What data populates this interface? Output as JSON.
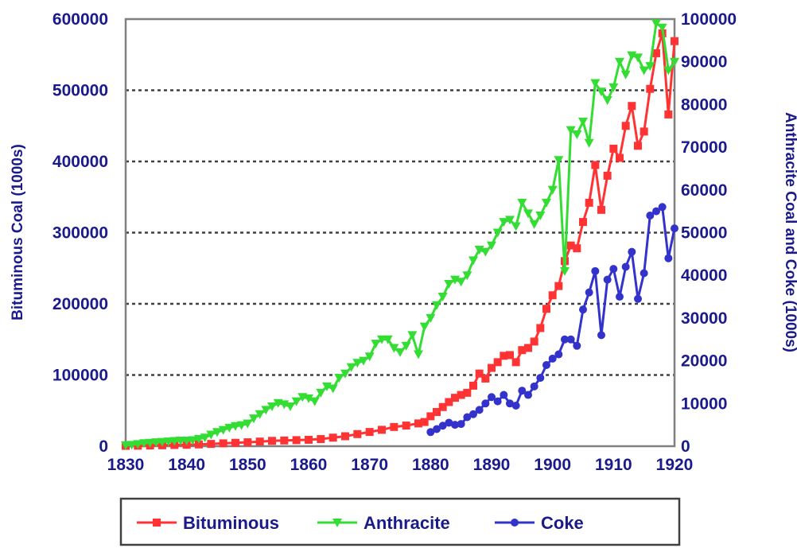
{
  "chart_data": {
    "type": "line",
    "xlabel": "",
    "xlim": [
      1830,
      1920
    ],
    "x_ticks": [
      "1830",
      "1840",
      "1850",
      "1860",
      "1870",
      "1880",
      "1890",
      "1900",
      "1910",
      "1920"
    ],
    "y_left": {
      "label": "Bituminous Coal (1000s)",
      "lim": [
        0,
        600000
      ],
      "ticks": [
        "0",
        "100000",
        "200000",
        "300000",
        "400000",
        "500000",
        "600000"
      ]
    },
    "y_right": {
      "label": "Anthracite Coal and Coke (1000s)",
      "lim": [
        0,
        100000
      ],
      "ticks": [
        "0",
        "10000",
        "20000",
        "30000",
        "40000",
        "50000",
        "60000",
        "70000",
        "80000",
        "90000",
        "100000"
      ]
    },
    "grid": "horizontal dotted",
    "legend_position": "bottom",
    "series": [
      {
        "name": "Bituminous",
        "axis": "left",
        "color": "#ff3333",
        "marker": "square",
        "x": [
          1830,
          1832,
          1834,
          1836,
          1838,
          1840,
          1842,
          1844,
          1846,
          1848,
          1850,
          1852,
          1854,
          1856,
          1858,
          1860,
          1862,
          1864,
          1866,
          1868,
          1870,
          1872,
          1874,
          1876,
          1878,
          1879,
          1880,
          1881,
          1882,
          1883,
          1884,
          1885,
          1886,
          1887,
          1888,
          1889,
          1890,
          1891,
          1892,
          1893,
          1894,
          1895,
          1896,
          1897,
          1898,
          1899,
          1900,
          1901,
          1902,
          1903,
          1904,
          1905,
          1906,
          1907,
          1908,
          1909,
          1910,
          1911,
          1912,
          1913,
          1914,
          1915,
          1916,
          1917,
          1918,
          1919,
          1920
        ],
        "values": [
          500,
          700,
          1000,
          1300,
          1700,
          2000,
          2500,
          3200,
          4000,
          4800,
          5500,
          6500,
          7500,
          8000,
          8500,
          9000,
          10000,
          12000,
          14000,
          17000,
          20000,
          23000,
          27000,
          29000,
          32000,
          34000,
          42000,
          48000,
          55000,
          62000,
          68000,
          72000,
          75000,
          85000,
          102000,
          95000,
          110000,
          118000,
          127000,
          128000,
          118000,
          135000,
          138000,
          147000,
          166000,
          193000,
          212000,
          225000,
          260000,
          282000,
          278000,
          315000,
          342000,
          395000,
          332000,
          380000,
          418000,
          405000,
          450000,
          478000,
          422000,
          442000,
          502000,
          552000,
          580000,
          466000,
          569000
        ]
      },
      {
        "name": "Anthracite",
        "axis": "right",
        "color": "#33dd33",
        "marker": "triangle-down",
        "x": [
          1830,
          1831,
          1832,
          1833,
          1834,
          1835,
          1836,
          1837,
          1838,
          1839,
          1840,
          1841,
          1842,
          1843,
          1844,
          1845,
          1846,
          1847,
          1848,
          1849,
          1850,
          1851,
          1852,
          1853,
          1854,
          1855,
          1856,
          1857,
          1858,
          1859,
          1860,
          1861,
          1862,
          1863,
          1864,
          1865,
          1866,
          1867,
          1868,
          1869,
          1870,
          1871,
          1872,
          1873,
          1874,
          1875,
          1876,
          1877,
          1878,
          1879,
          1880,
          1881,
          1882,
          1883,
          1884,
          1885,
          1886,
          1887,
          1888,
          1889,
          1890,
          1891,
          1892,
          1893,
          1894,
          1895,
          1896,
          1897,
          1898,
          1899,
          1900,
          1901,
          1902,
          1903,
          1904,
          1905,
          1906,
          1907,
          1908,
          1909,
          1910,
          1911,
          1912,
          1913,
          1914,
          1915,
          1916,
          1917,
          1918,
          1919,
          1920
        ],
        "values": [
          200,
          300,
          500,
          700,
          800,
          900,
          1000,
          1100,
          1200,
          1300,
          1300,
          1400,
          1700,
          2000,
          2700,
          3300,
          3800,
          4300,
          4700,
          4900,
          5300,
          6500,
          7500,
          8500,
          9300,
          10100,
          9800,
          9300,
          10500,
          11500,
          11200,
          10500,
          12500,
          14000,
          13500,
          16000,
          17000,
          18500,
          19500,
          20000,
          21000,
          24000,
          25000,
          25000,
          23000,
          22000,
          23500,
          26000,
          21500,
          28000,
          30000,
          33000,
          35000,
          38000,
          39000,
          38500,
          40000,
          43500,
          46000,
          45500,
          47000,
          50000,
          52500,
          53000,
          51500,
          57000,
          54500,
          52000,
          54000,
          57000,
          60000,
          67000,
          41000,
          74000,
          73000,
          76000,
          71000,
          85000,
          83000,
          81000,
          84000,
          90000,
          87000,
          91500,
          91000,
          88000,
          89000,
          99000,
          98000,
          88000,
          90000
        ]
      },
      {
        "name": "Coke",
        "axis": "right",
        "color": "#3333cc",
        "marker": "circle",
        "x": [
          1880,
          1881,
          1882,
          1883,
          1884,
          1885,
          1886,
          1887,
          1888,
          1889,
          1890,
          1891,
          1892,
          1893,
          1894,
          1895,
          1896,
          1897,
          1898,
          1899,
          1900,
          1901,
          1902,
          1903,
          1904,
          1905,
          1906,
          1907,
          1908,
          1909,
          1910,
          1911,
          1912,
          1913,
          1914,
          1915,
          1916,
          1917,
          1918,
          1919,
          1920
        ],
        "values": [
          3300,
          4000,
          4800,
          5500,
          5000,
          5200,
          6800,
          7500,
          8500,
          10000,
          11500,
          10500,
          12000,
          10000,
          9500,
          13000,
          12000,
          14000,
          16000,
          19000,
          20500,
          21500,
          25000,
          25000,
          23500,
          32000,
          36000,
          41000,
          26000,
          39000,
          41500,
          35000,
          42000,
          45500,
          34500,
          40500,
          54000,
          55000,
          56000,
          44000,
          51000
        ]
      }
    ]
  },
  "legend": {
    "items": [
      {
        "label": "Bituminous",
        "color": "#ff3333",
        "icon": "square-marker-icon"
      },
      {
        "label": "Anthracite",
        "color": "#33dd33",
        "icon": "triangle-marker-icon"
      },
      {
        "label": "Coke",
        "color": "#3333cc",
        "icon": "circle-marker-icon"
      }
    ]
  },
  "colors": {
    "axis_text": "#1a1a8c",
    "grid": "#404040",
    "axis_line": "#808080"
  }
}
